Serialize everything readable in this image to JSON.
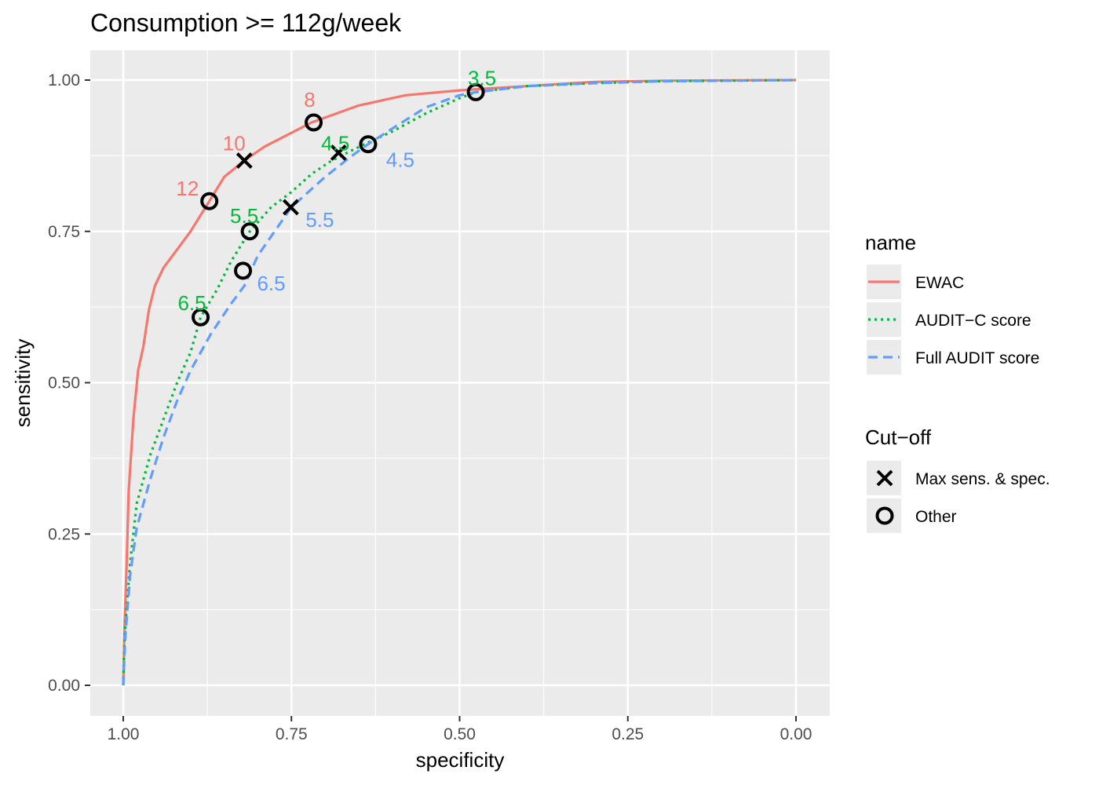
{
  "chart_data": {
    "type": "line",
    "title": "Consumption >= 112g/week",
    "xlabel": "specificity",
    "ylabel": "sensitivity",
    "xlim": [
      1.0,
      0.0
    ],
    "x_reversed": true,
    "ylim": [
      0.0,
      1.0
    ],
    "x_ticks": [
      {
        "value": 1.0,
        "label": "1.00"
      },
      {
        "value": 0.75,
        "label": "0.75"
      },
      {
        "value": 0.5,
        "label": "0.50"
      },
      {
        "value": 0.25,
        "label": "0.25"
      },
      {
        "value": 0.0,
        "label": "0.00"
      }
    ],
    "y_ticks": [
      {
        "value": 0.0,
        "label": "0.00"
      },
      {
        "value": 0.25,
        "label": "0.25"
      },
      {
        "value": 0.5,
        "label": "0.50"
      },
      {
        "value": 0.75,
        "label": "0.75"
      },
      {
        "value": 1.0,
        "label": "1.00"
      }
    ],
    "grid": true,
    "legend_position": "right",
    "series": [
      {
        "name": "EWAC",
        "color": "#F8766D",
        "dash": "solid",
        "points": [
          [
            1.0,
            0.0
          ],
          [
            0.998,
            0.1
          ],
          [
            0.995,
            0.2
          ],
          [
            0.992,
            0.32
          ],
          [
            0.985,
            0.44
          ],
          [
            0.978,
            0.52
          ],
          [
            0.97,
            0.56
          ],
          [
            0.962,
            0.62
          ],
          [
            0.953,
            0.66
          ],
          [
            0.94,
            0.69
          ],
          [
            0.92,
            0.72
          ],
          [
            0.9,
            0.75
          ],
          [
            0.872,
            0.8
          ],
          [
            0.85,
            0.84
          ],
          [
            0.82,
            0.867
          ],
          [
            0.79,
            0.89
          ],
          [
            0.72,
            0.93
          ],
          [
            0.65,
            0.958
          ],
          [
            0.58,
            0.975
          ],
          [
            0.5,
            0.983
          ],
          [
            0.474,
            0.985
          ],
          [
            0.4,
            0.99
          ],
          [
            0.3,
            0.997
          ],
          [
            0.2,
            0.999
          ],
          [
            0.0,
            1.0
          ]
        ]
      },
      {
        "name": "AUDIT−C score",
        "color": "#00BA38",
        "dash": "dotted",
        "points": [
          [
            1.0,
            0.0
          ],
          [
            0.998,
            0.08
          ],
          [
            0.99,
            0.2
          ],
          [
            0.98,
            0.3
          ],
          [
            0.96,
            0.38
          ],
          [
            0.94,
            0.44
          ],
          [
            0.92,
            0.5
          ],
          [
            0.9,
            0.55
          ],
          [
            0.885,
            0.608
          ],
          [
            0.86,
            0.655
          ],
          [
            0.84,
            0.7
          ],
          [
            0.812,
            0.75
          ],
          [
            0.78,
            0.79
          ],
          [
            0.75,
            0.815
          ],
          [
            0.72,
            0.845
          ],
          [
            0.69,
            0.867
          ],
          [
            0.667,
            0.88
          ],
          [
            0.64,
            0.895
          ],
          [
            0.6,
            0.915
          ],
          [
            0.55,
            0.945
          ],
          [
            0.5,
            0.97
          ],
          [
            0.476,
            0.98
          ],
          [
            0.4,
            0.99
          ],
          [
            0.3,
            0.995
          ],
          [
            0.2,
            0.998
          ],
          [
            0.0,
            1.0
          ]
        ]
      },
      {
        "name": "Full AUDIT score",
        "color": "#619CFF",
        "dash": "dashed",
        "points": [
          [
            1.0,
            0.0
          ],
          [
            0.997,
            0.08
          ],
          [
            0.99,
            0.18
          ],
          [
            0.98,
            0.26
          ],
          [
            0.96,
            0.34
          ],
          [
            0.94,
            0.41
          ],
          [
            0.92,
            0.47
          ],
          [
            0.9,
            0.52
          ],
          [
            0.87,
            0.58
          ],
          [
            0.84,
            0.63
          ],
          [
            0.82,
            0.66
          ],
          [
            0.8,
            0.71
          ],
          [
            0.75,
            0.79
          ],
          [
            0.7,
            0.84
          ],
          [
            0.66,
            0.875
          ],
          [
            0.636,
            0.894
          ],
          [
            0.6,
            0.92
          ],
          [
            0.55,
            0.955
          ],
          [
            0.5,
            0.975
          ],
          [
            0.476,
            0.98
          ],
          [
            0.4,
            0.99
          ],
          [
            0.3,
            0.995
          ],
          [
            0.2,
            0.998
          ],
          [
            0.0,
            1.0
          ]
        ]
      }
    ],
    "cutoff_points": [
      {
        "series": "EWAC",
        "label": "12",
        "x": 0.872,
        "y": 0.8,
        "shape": "Other"
      },
      {
        "series": "EWAC",
        "label": "10",
        "x": 0.82,
        "y": 0.867,
        "shape": "Max sens. & spec."
      },
      {
        "series": "EWAC",
        "label": "8",
        "x": 0.717,
        "y": 0.93,
        "shape": "Other"
      },
      {
        "series": "AUDIT−C score",
        "label": "6.5",
        "x": 0.885,
        "y": 0.608,
        "shape": "Other"
      },
      {
        "series": "AUDIT−C score",
        "label": "5.5",
        "x": 0.812,
        "y": 0.75,
        "shape": "Other"
      },
      {
        "series": "AUDIT−C score",
        "label": "4.5",
        "x": 0.68,
        "y": 0.88,
        "shape": "Max sens. & spec."
      },
      {
        "series": "AUDIT−C score",
        "label": "3.5",
        "x": 0.476,
        "y": 0.98,
        "shape": "Other"
      },
      {
        "series": "Full AUDIT score",
        "label": "6.5",
        "x": 0.822,
        "y": 0.685,
        "shape": "Other"
      },
      {
        "series": "Full AUDIT score",
        "label": "5.5",
        "x": 0.751,
        "y": 0.79,
        "shape": "Max sens. & spec."
      },
      {
        "series": "Full AUDIT score",
        "label": "4.5",
        "x": 0.636,
        "y": 0.894,
        "shape": "Other"
      }
    ],
    "legends": [
      {
        "title": "name",
        "entries": [
          {
            "label": "EWAC",
            "color": "#F8766D",
            "dash": "solid"
          },
          {
            "label": "AUDIT−C score",
            "color": "#00BA38",
            "dash": "dotted"
          },
          {
            "label": "Full AUDIT score",
            "color": "#619CFF",
            "dash": "dashed"
          }
        ]
      },
      {
        "title": "Cut−off",
        "entries": [
          {
            "label": "Max sens. & spec.",
            "shape": "cross"
          },
          {
            "label": "Other",
            "shape": "circle"
          }
        ]
      }
    ]
  }
}
